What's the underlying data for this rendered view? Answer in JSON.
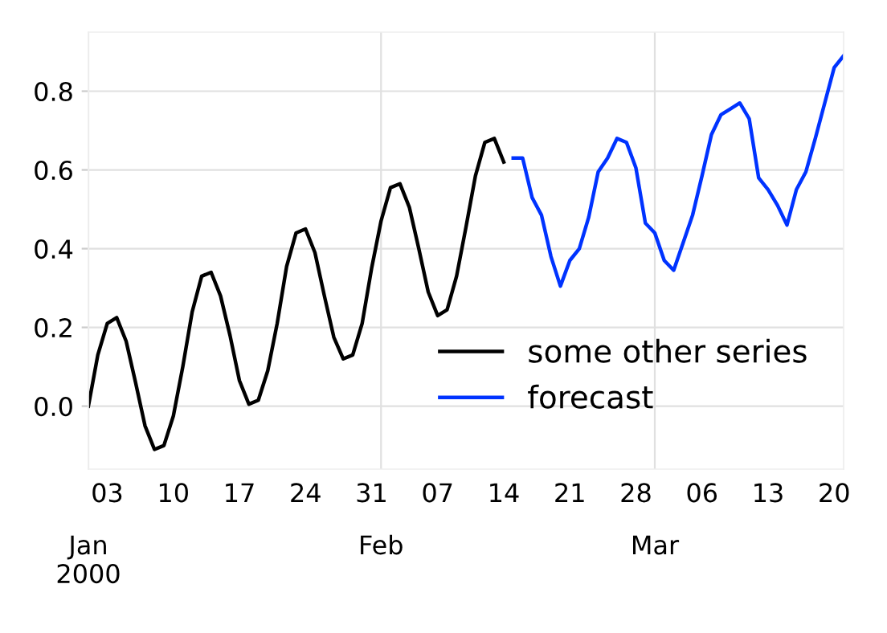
{
  "chart_data": {
    "type": "line",
    "series": [
      {
        "name": "some other series",
        "color": "#000000",
        "x": [
          "2000-01-01",
          "2000-01-02",
          "2000-01-03",
          "2000-01-04",
          "2000-01-05",
          "2000-01-06",
          "2000-01-07",
          "2000-01-08",
          "2000-01-09",
          "2000-01-10",
          "2000-01-11",
          "2000-01-12",
          "2000-01-13",
          "2000-01-14",
          "2000-01-15",
          "2000-01-16",
          "2000-01-17",
          "2000-01-18",
          "2000-01-19",
          "2000-01-20",
          "2000-01-21",
          "2000-01-22",
          "2000-01-23",
          "2000-01-24",
          "2000-01-25",
          "2000-01-26",
          "2000-01-27",
          "2000-01-28",
          "2000-01-29",
          "2000-01-30",
          "2000-01-31",
          "2000-02-01",
          "2000-02-02",
          "2000-02-03",
          "2000-02-04",
          "2000-02-05",
          "2000-02-06",
          "2000-02-07",
          "2000-02-08",
          "2000-02-09",
          "2000-02-10",
          "2000-02-11",
          "2000-02-12",
          "2000-02-13",
          "2000-02-14"
        ],
        "values": [
          0.0,
          0.13,
          0.21,
          0.225,
          0.165,
          0.06,
          -0.05,
          -0.11,
          -0.1,
          -0.025,
          0.1,
          0.24,
          0.33,
          0.34,
          0.28,
          0.18,
          0.065,
          0.005,
          0.015,
          0.09,
          0.21,
          0.355,
          0.44,
          0.45,
          0.39,
          0.28,
          0.175,
          0.12,
          0.13,
          0.21,
          0.35,
          0.47,
          0.555,
          0.565,
          0.505,
          0.4,
          0.29,
          0.23,
          0.245,
          0.33,
          0.455,
          0.585,
          0.67,
          0.68,
          0.62
        ]
      },
      {
        "name": "forecast",
        "color": "#0033ff",
        "x": [
          "2000-02-15",
          "2000-02-16",
          "2000-02-17",
          "2000-02-18",
          "2000-02-19",
          "2000-02-20",
          "2000-02-21",
          "2000-02-22",
          "2000-02-23",
          "2000-02-24",
          "2000-02-25",
          "2000-02-26",
          "2000-02-27",
          "2000-02-28",
          "2000-02-29",
          "2000-03-01",
          "2000-03-02",
          "2000-03-03",
          "2000-03-04",
          "2000-03-05",
          "2000-03-06",
          "2000-03-07",
          "2000-03-08",
          "2000-03-09",
          "2000-03-10",
          "2000-03-11",
          "2000-03-12",
          "2000-03-13",
          "2000-03-14",
          "2000-03-15",
          "2000-03-16",
          "2000-03-17",
          "2000-03-18",
          "2000-03-19",
          "2000-03-20",
          "2000-03-21"
        ],
        "values": [
          0.63,
          0.63,
          0.53,
          0.485,
          0.38,
          0.305,
          0.37,
          0.4,
          0.48,
          0.595,
          0.63,
          0.68,
          0.67,
          0.605,
          0.465,
          0.44,
          0.37,
          0.345,
          0.415,
          0.485,
          0.585,
          0.69,
          0.74,
          0.755,
          0.77,
          0.73,
          0.58,
          0.55,
          0.51,
          0.46,
          0.55,
          0.595,
          0.68,
          0.77,
          0.86,
          0.89
        ]
      }
    ],
    "xlim": [
      "2000-01-01",
      "2000-03-21"
    ],
    "x2lim": [
      "2000-01-01",
      "2000-03-21"
    ],
    "x2ticks": [
      {
        "value": "2000-01-01",
        "label": "Jan\n2000"
      },
      {
        "value": "2000-02-01",
        "label": "Feb"
      },
      {
        "value": "2000-03-01",
        "label": "Mar"
      }
    ],
    "xticks": [
      {
        "value": "2000-01-03",
        "label": "03"
      },
      {
        "value": "2000-01-10",
        "label": "10"
      },
      {
        "value": "2000-01-17",
        "label": "17"
      },
      {
        "value": "2000-01-24",
        "label": "24"
      },
      {
        "value": "2000-01-31",
        "label": "31"
      },
      {
        "value": "2000-02-07",
        "label": "07"
      },
      {
        "value": "2000-02-14",
        "label": "14"
      },
      {
        "value": "2000-02-21",
        "label": "21"
      },
      {
        "value": "2000-02-28",
        "label": "28"
      },
      {
        "value": "2000-03-06",
        "label": "06"
      },
      {
        "value": "2000-03-13",
        "label": "13"
      },
      {
        "value": "2000-03-20",
        "label": "20"
      }
    ],
    "ylim": [
      -0.16,
      0.95
    ],
    "yticks": [
      {
        "value": 0.0,
        "label": "0.0"
      },
      0.2,
      0.4,
      0.6,
      0.8
    ],
    "grid": true,
    "legend": "bottom right",
    "marker": "none",
    "line_style": "solid"
  }
}
